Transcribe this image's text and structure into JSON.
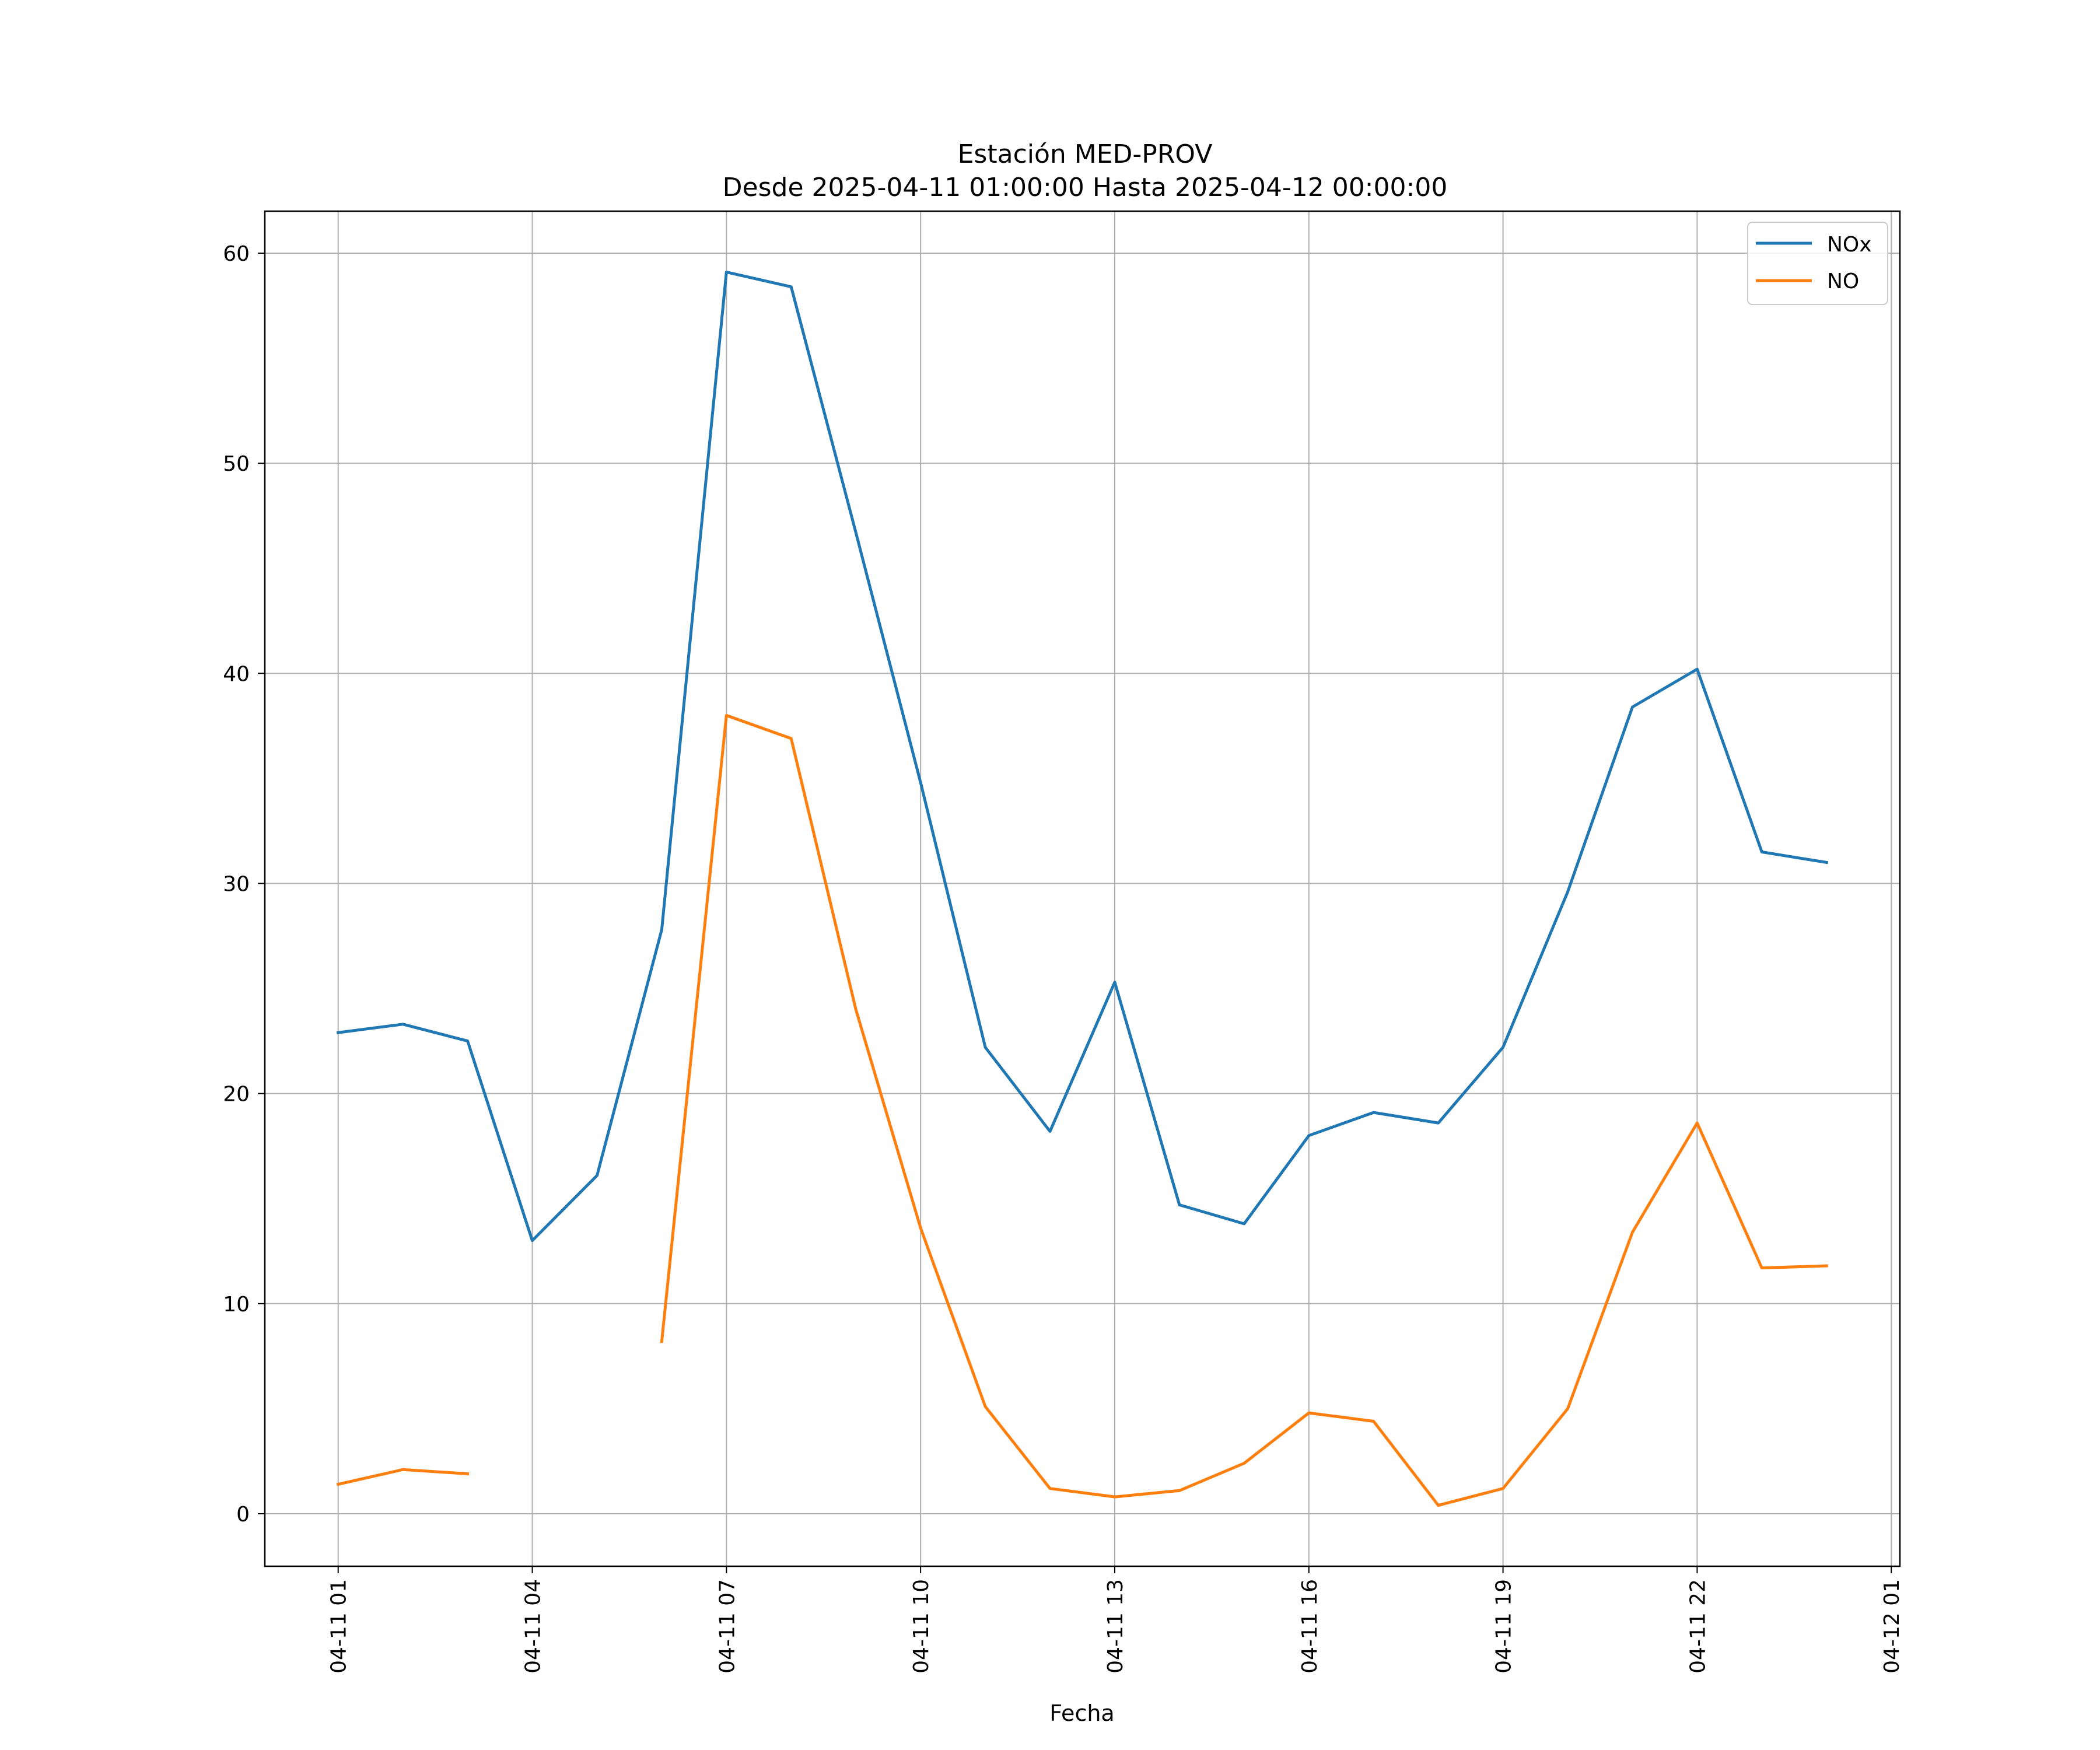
{
  "chart_data": {
    "type": "line",
    "title": "Estación MED-PROV",
    "subtitle": "Desde 2025-04-11 01:00:00 Hasta 2025-04-12 00:00:00",
    "xlabel": "Fecha",
    "ylabel": "",
    "x": [
      "2025-04-11 01:00",
      "2025-04-11 02:00",
      "2025-04-11 03:00",
      "2025-04-11 04:00",
      "2025-04-11 05:00",
      "2025-04-11 06:00",
      "2025-04-11 07:00",
      "2025-04-11 08:00",
      "2025-04-11 09:00",
      "2025-04-11 10:00",
      "2025-04-11 11:00",
      "2025-04-11 12:00",
      "2025-04-11 13:00",
      "2025-04-11 14:00",
      "2025-04-11 15:00",
      "2025-04-11 16:00",
      "2025-04-11 17:00",
      "2025-04-11 18:00",
      "2025-04-11 19:00",
      "2025-04-11 20:00",
      "2025-04-11 21:00",
      "2025-04-11 22:00",
      "2025-04-11 23:00",
      "2025-04-12 00:00"
    ],
    "xlim": [
      "2025-04-10 23:52",
      "2025-04-12 01:08"
    ],
    "x_ticks": [
      "04-11 01",
      "04-11 04",
      "04-11 07",
      "04-11 10",
      "04-11 13",
      "04-11 16",
      "04-11 19",
      "04-11 22",
      "04-12 01"
    ],
    "ylim": [
      -2.5,
      62
    ],
    "y_ticks": [
      0,
      10,
      20,
      30,
      40,
      50,
      60
    ],
    "grid": true,
    "legend_position": "top-right",
    "series": [
      {
        "name": "NOx",
        "color": "#1f77b4",
        "values": [
          22.9,
          23.3,
          22.5,
          13.0,
          16.1,
          27.8,
          59.1,
          58.4,
          46.7,
          34.8,
          22.2,
          18.2,
          25.3,
          14.7,
          13.8,
          18.0,
          19.1,
          18.6,
          22.2,
          29.6,
          38.4,
          40.2,
          31.5,
          31.0
        ]
      },
      {
        "name": "NO",
        "color": "#ff7f0e",
        "values": [
          1.4,
          2.1,
          1.9,
          null,
          null,
          8.2,
          38.0,
          36.9,
          24.0,
          13.6,
          5.1,
          1.2,
          0.8,
          1.1,
          2.4,
          4.8,
          4.4,
          0.4,
          1.2,
          5.0,
          13.4,
          18.6,
          11.7,
          11.8
        ]
      }
    ]
  }
}
